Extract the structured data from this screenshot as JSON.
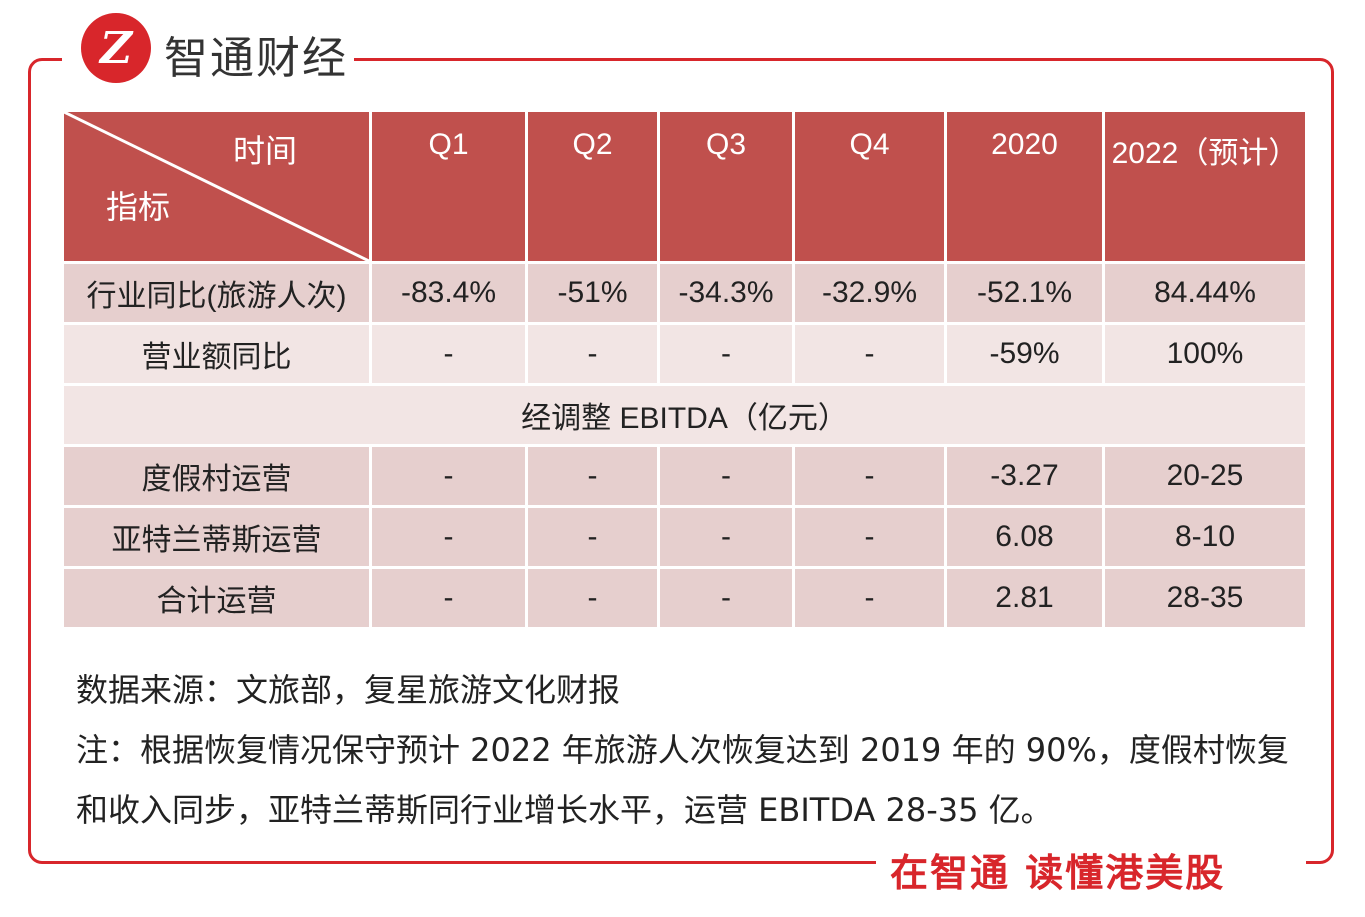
{
  "brand": {
    "logo_mark": "Z",
    "name": "智通财经",
    "slogan": "在智通 读懂港美股"
  },
  "table": {
    "corner_top": "时间",
    "corner_bottom": "指标",
    "columns": [
      "Q1",
      "Q2",
      "Q3",
      "Q4",
      "2020",
      "2022（预计）"
    ],
    "rows": [
      {
        "label": "行业同比(旅游人次)",
        "values": [
          "-83.4%",
          "-51%",
          "-34.3%",
          "-32.9%",
          "-52.1%",
          "84.44%"
        ]
      },
      {
        "label": "营业额同比",
        "values": [
          "-",
          "-",
          "-",
          "-",
          "-59%",
          "100%"
        ]
      }
    ],
    "section_title": "经调整 EBITDA（亿元）",
    "ebitda_rows": [
      {
        "label": "度假村运营",
        "values": [
          "-",
          "-",
          "-",
          "-",
          "-3.27",
          "20-25"
        ]
      },
      {
        "label": "亚特兰蒂斯运营",
        "values": [
          "-",
          "-",
          "-",
          "-",
          "6.08",
          "8-10"
        ]
      },
      {
        "label": "合计运营",
        "values": [
          "-",
          "-",
          "-",
          "-",
          "2.81",
          "28-35"
        ]
      }
    ]
  },
  "notes": {
    "source": "数据来源：文旅部，复星旅游文化财报",
    "note": "注：根据恢复情况保守预计 2022 年旅游人次恢复达到 2019 年的 90%，度假村恢复和收入同步，亚特兰蒂斯同行业增长水平，运营 EBITDA 28-35 亿。"
  },
  "colors": {
    "brand_red": "#d8262b",
    "header_bg": "#c0504d",
    "row_dark": "#e6cfce",
    "row_light": "#f2e5e4"
  }
}
